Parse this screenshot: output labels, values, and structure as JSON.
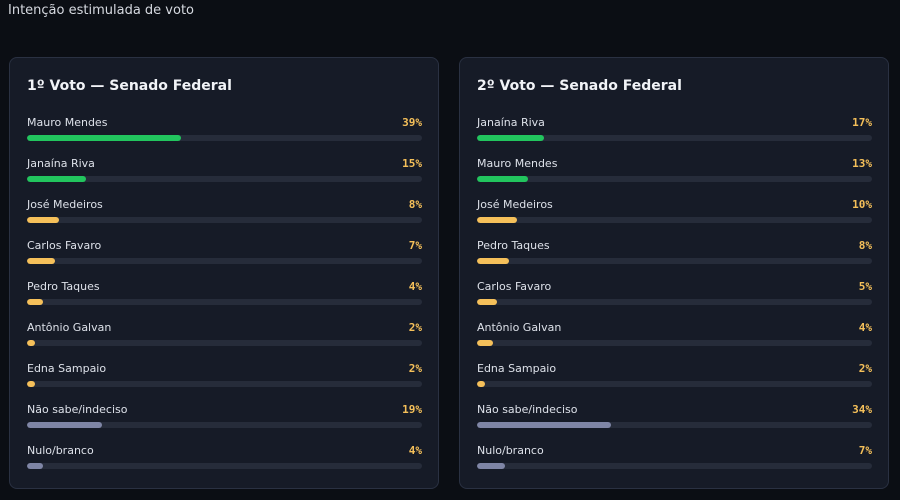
{
  "page": {
    "title": "Intenção estimulada de voto"
  },
  "colors": {
    "leader": "#22c55e",
    "candidate": "#f5c05a",
    "undecided": "#7f86a6",
    "track": "#262c3a",
    "value_text": "#f5c05a"
  },
  "chart_data": [
    {
      "type": "bar",
      "orientation": "horizontal",
      "title": "1º Voto — Senado Federal",
      "xlim": [
        0,
        100
      ],
      "unit": "%",
      "categories": [
        "Mauro Mendes",
        "Janaína Riva",
        "José Medeiros",
        "Carlos Favaro",
        "Pedro Taques",
        "Antônio Galvan",
        "Edna Sampaio",
        "Não sabe/indeciso",
        "Nulo/branco"
      ],
      "values": [
        39,
        15,
        8,
        7,
        4,
        2,
        2,
        19,
        4
      ],
      "value_labels": [
        "39%",
        "15%",
        "8%",
        "7%",
        "4%",
        "2%",
        "2%",
        "19%",
        "4%"
      ],
      "bar_colors": [
        "leader",
        "leader",
        "candidate",
        "candidate",
        "candidate",
        "candidate",
        "candidate",
        "undecided",
        "undecided"
      ]
    },
    {
      "type": "bar",
      "orientation": "horizontal",
      "title": "2º Voto — Senado Federal",
      "xlim": [
        0,
        100
      ],
      "unit": "%",
      "categories": [
        "Janaína Riva",
        "Mauro Mendes",
        "José Medeiros",
        "Pedro Taques",
        "Carlos Favaro",
        "Antônio Galvan",
        "Edna Sampaio",
        "Não sabe/indeciso",
        "Nulo/branco"
      ],
      "values": [
        17,
        13,
        10,
        8,
        5,
        4,
        2,
        34,
        7
      ],
      "value_labels": [
        "17%",
        "13%",
        "10%",
        "8%",
        "5%",
        "4%",
        "2%",
        "34%",
        "7%"
      ],
      "bar_colors": [
        "leader",
        "leader",
        "candidate",
        "candidate",
        "candidate",
        "candidate",
        "candidate",
        "undecided",
        "undecided"
      ]
    }
  ]
}
